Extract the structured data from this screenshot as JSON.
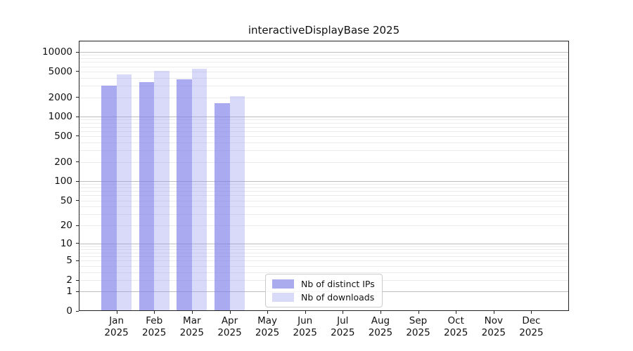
{
  "chart_data": {
    "type": "bar",
    "title": "interactiveDisplayBase 2025",
    "categories": [
      "Jan 2025",
      "Feb 2025",
      "Mar 2025",
      "Apr 2025",
      "May 2025",
      "Jun 2025",
      "Jul 2025",
      "Aug 2025",
      "Sep 2025",
      "Oct 2025",
      "Nov 2025",
      "Dec 2025"
    ],
    "series": [
      {
        "name": "Nb of distinct IPs",
        "fill": "rgba(126,126,232,0.66)",
        "legend_color": "#aaaaef",
        "values": [
          3000,
          3400,
          3800,
          1600,
          null,
          null,
          null,
          null,
          null,
          null,
          null,
          null
        ]
      },
      {
        "name": "Nb of downloads",
        "fill": "rgba(149,149,238,0.36)",
        "legend_color": "#d9d9f8",
        "values": [
          4500,
          5100,
          5500,
          2100,
          null,
          null,
          null,
          null,
          null,
          null,
          null,
          null
        ]
      }
    ],
    "y_ticks": [
      10000,
      5000,
      2000,
      1000,
      500,
      200,
      100,
      50,
      20,
      10,
      5,
      2,
      1,
      0
    ],
    "y_scale": "log10(1+v)",
    "ylim": [
      0,
      14900
    ],
    "grid": "horizontal",
    "legend_position": "lower center"
  }
}
